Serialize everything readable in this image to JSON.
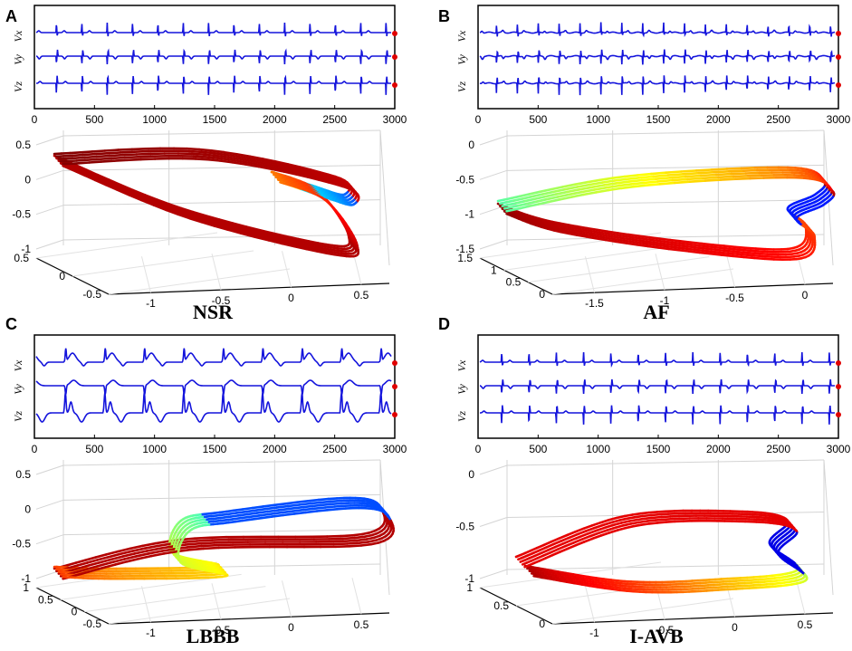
{
  "chart_data": [
    {
      "panel": "A",
      "type": "line",
      "title": "NSR",
      "ecg": {
        "leads": [
          "Vx",
          "Vy",
          "Vz"
        ],
        "xlim": [
          0,
          3000
        ],
        "xticks": [
          "0",
          "500",
          "1000",
          "1500",
          "2000",
          "2500",
          "3000"
        ],
        "beats": 14,
        "color": "#1414dc"
      },
      "loop": {
        "zticks": [
          "0.5",
          "0",
          "-0.5",
          "-1"
        ],
        "yticks": [
          "0.5",
          "0",
          "-0.5"
        ],
        "xticks": [
          "-1",
          "-0.5",
          "0",
          "0.5"
        ],
        "colormap": "jet"
      }
    },
    {
      "panel": "B",
      "type": "line",
      "title": "AF",
      "ecg": {
        "leads": [
          "Vx",
          "Vy",
          "Vz"
        ],
        "xlim": [
          0,
          3000
        ],
        "xticks": [
          "0",
          "500",
          "1000",
          "1500",
          "2000",
          "2500",
          "3000"
        ],
        "beats": 17,
        "color": "#1414dc"
      },
      "loop": {
        "zticks": [
          "0",
          "-0.5",
          "-1",
          "-1.5"
        ],
        "yticks": [
          "1.5",
          "1",
          "0.5",
          "0"
        ],
        "xticks": [
          "-1.5",
          "-1",
          "-0.5",
          "0"
        ],
        "colormap": "jet"
      }
    },
    {
      "panel": "C",
      "type": "line",
      "title": "LBBB",
      "ecg": {
        "leads": [
          "Vx",
          "Vy",
          "Vz"
        ],
        "xlim": [
          0,
          3000
        ],
        "xticks": [
          "0",
          "500",
          "1000",
          "1500",
          "2000",
          "2500",
          "3000"
        ],
        "beats": 9,
        "color": "#1414dc"
      },
      "loop": {
        "zticks": [
          "0.5",
          "0",
          "-0.5",
          "-1"
        ],
        "yticks": [
          "1",
          "0.5",
          "0",
          "-0.5"
        ],
        "xticks": [
          "-1",
          "-0.5",
          "0",
          "0.5"
        ],
        "colormap": "jet"
      }
    },
    {
      "panel": "D",
      "type": "line",
      "title": "I-AVB",
      "ecg": {
        "leads": [
          "Vx",
          "Vy",
          "Vz"
        ],
        "xlim": [
          0,
          3000
        ],
        "xticks": [
          "0",
          "500",
          "1000",
          "1500",
          "2000",
          "2500",
          "3000"
        ],
        "beats": 13,
        "color": "#1414dc"
      },
      "loop": {
        "zticks": [
          "0",
          "-0.5",
          "-1"
        ],
        "yticks": [
          "1",
          "0.5",
          "0"
        ],
        "xticks": [
          "-1",
          "-0.5",
          "0",
          "0.5"
        ],
        "colormap": "jet"
      }
    }
  ]
}
